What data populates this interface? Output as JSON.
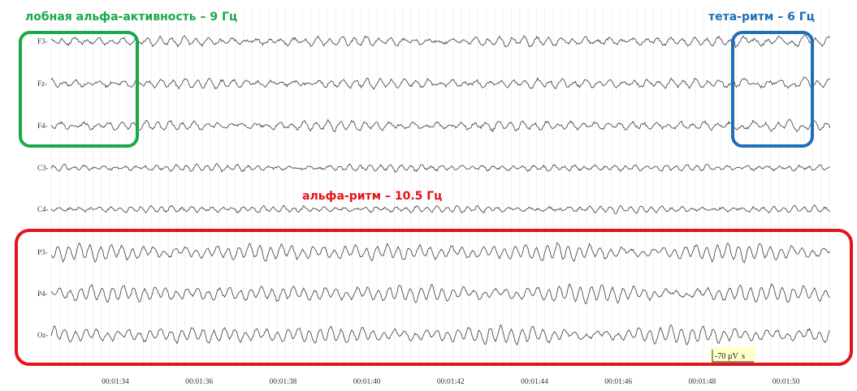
{
  "colors": {
    "trace": "#3a3a3a",
    "grid": "#e6e6e6",
    "frontal_alpha": "#19a84a",
    "theta": "#1f6fb6",
    "alpha": "#e3141b",
    "scale_bg": "#ffffc8"
  },
  "channels": [
    {
      "label": "F3",
      "rhythm": "frontal"
    },
    {
      "label": "Fz",
      "rhythm": "frontal"
    },
    {
      "label": "F4",
      "rhythm": "frontal"
    },
    {
      "label": "C3",
      "rhythm": "central"
    },
    {
      "label": "C4",
      "rhythm": "central"
    },
    {
      "label": "P3",
      "rhythm": "posterior"
    },
    {
      "label": "P4",
      "rhythm": "posterior"
    },
    {
      "label": "Oz",
      "rhythm": "posterior"
    }
  ],
  "time_labels": [
    "00:01:34",
    "00:01:36",
    "00:01:38",
    "00:01:40",
    "00:01:42",
    "00:01:44",
    "00:01:46",
    "00:01:48",
    "00:01:50"
  ],
  "annotations": {
    "frontal_alpha": "лобная альфа-активность – 9 Гц",
    "theta": "тета-ритм – 6 Гц",
    "alpha": "альфа-ритм – 10.5 Гц"
  },
  "scale": {
    "amplitude": "-70 µV",
    "time": "s"
  }
}
